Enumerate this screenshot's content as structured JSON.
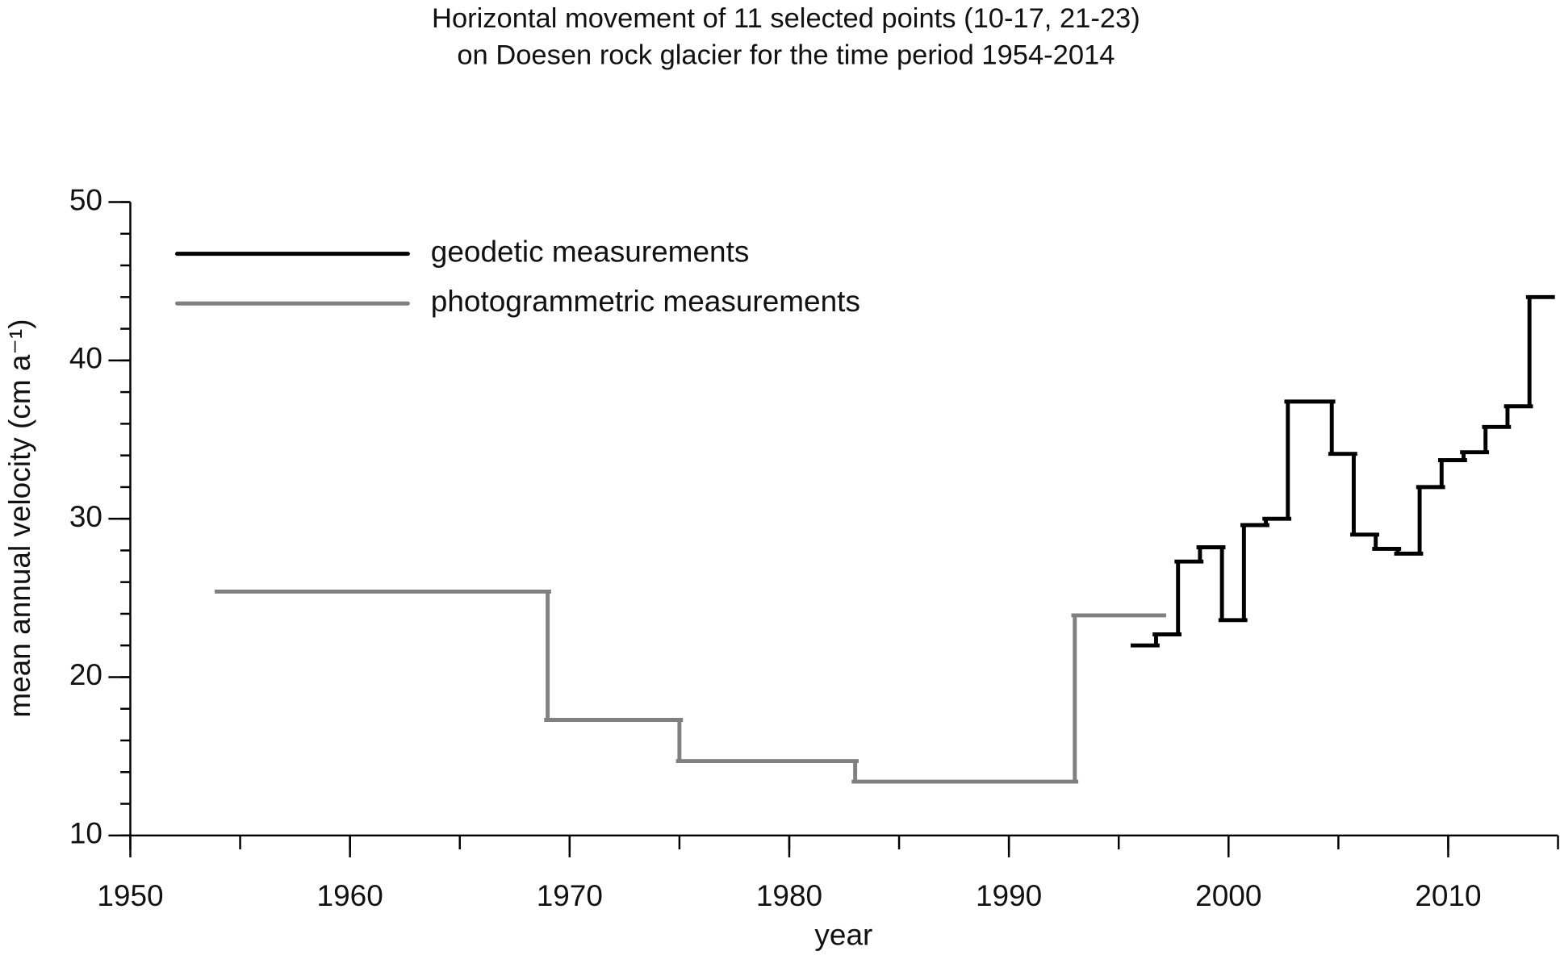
{
  "chart_data": {
    "type": "step",
    "title": [
      "Horizontal movement of 11 selected points (10-17, 21-23)",
      "on Doesen rock glacier for the time period 1954-2014"
    ],
    "x_label": "year",
    "y_label": "mean annual velocity (cm a⁻¹)",
    "xlim": [
      1950,
      2015
    ],
    "ylim": [
      10,
      50
    ],
    "xticks": [
      1950,
      1960,
      1970,
      1980,
      1990,
      2000,
      2010
    ],
    "yticks": [
      10,
      20,
      30,
      40,
      50
    ],
    "x_minor_step": 5,
    "y_minor_step": 2,
    "legend": "upper left",
    "series": [
      {
        "name": "geodetic measurements",
        "color": "#000000",
        "x": [
          1995.7,
          1996.7,
          1997.7,
          1998.7,
          1999.7,
          2000.7,
          2001.7,
          2002.7,
          2004.7,
          2005.7,
          2006.7,
          2007.7,
          2008.7,
          2009.7,
          2010.7,
          2011.7,
          2012.7,
          2013.7,
          2014.7
        ],
        "values": [
          22.0,
          22.7,
          27.3,
          28.2,
          23.6,
          29.6,
          30.0,
          37.4,
          34.1,
          29.0,
          28.1,
          27.8,
          32.0,
          33.7,
          34.2,
          35.8,
          37.1,
          44.0,
          44.0
        ]
      },
      {
        "name": "photogrammetric measurements",
        "color": "#808080",
        "x": [
          1954,
          1969,
          1975,
          1983,
          1993,
          1997
        ],
        "values": [
          25.4,
          17.3,
          14.7,
          13.4,
          23.9,
          23.9
        ]
      }
    ]
  }
}
